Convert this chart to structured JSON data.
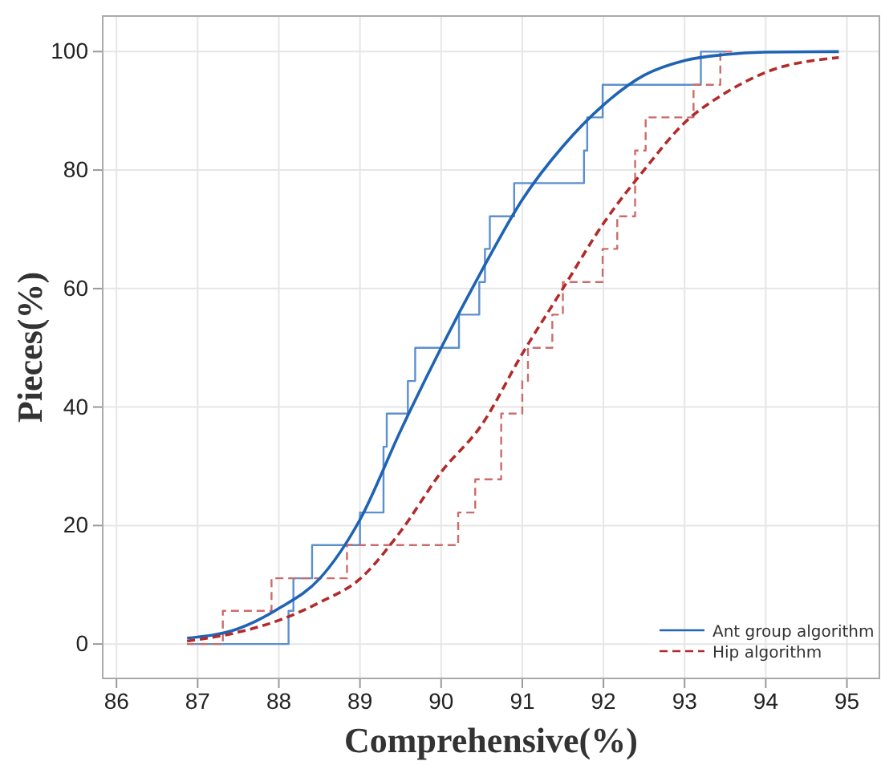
{
  "chart_data": {
    "type": "line",
    "xlabel": "Comprehensive(%)",
    "ylabel": "Pieces(%)",
    "xlim": [
      85.83,
      95.4
    ],
    "ylim": [
      -5.8,
      106
    ],
    "xticks": [
      86,
      87,
      88,
      89,
      90,
      91,
      92,
      93,
      94,
      95
    ],
    "yticks": [
      0,
      20,
      40,
      60,
      80,
      100
    ],
    "grid": true,
    "legend": "bottom right",
    "marker": "none",
    "series": [
      {
        "type": "step",
        "color": "#5b8fd0",
        "line_style": "solid",
        "x": [
          86.87,
          88.12,
          88.18,
          88.41,
          89.0,
          89.29,
          89.33,
          89.59,
          89.68,
          90.22,
          90.47,
          90.54,
          90.6,
          90.9,
          91.76,
          91.8,
          91.99,
          93.2,
          93.5
        ],
        "values": [
          0,
          5.6,
          11.1,
          16.7,
          22.2,
          33.3,
          38.9,
          44.4,
          50,
          55.6,
          61.1,
          66.7,
          72.2,
          77.8,
          83.3,
          88.9,
          94.4,
          100,
          100
        ]
      },
      {
        "type": "step",
        "color": "#cc6b6b",
        "line_style": "dashed",
        "x": [
          86.87,
          87.31,
          87.91,
          88.84,
          90.21,
          90.42,
          90.74,
          91.0,
          91.07,
          91.37,
          91.5,
          91.99,
          92.17,
          92.39,
          92.52,
          93.11,
          93.44,
          93.6
        ],
        "values": [
          0,
          5.6,
          11.1,
          16.7,
          22.2,
          27.8,
          38.9,
          44.4,
          50,
          55.6,
          61.1,
          66.7,
          72.2,
          83.3,
          88.9,
          94.4,
          100,
          100
        ]
      },
      {
        "name": "Ant group algorithm",
        "color": "#1f63b5",
        "line_style": "solid",
        "x": [
          86.87,
          87.5,
          88,
          88.5,
          89,
          89.5,
          90,
          90.5,
          91,
          91.5,
          92,
          92.5,
          93,
          93.5,
          94,
          94.9
        ],
        "values": [
          1,
          2.6,
          6,
          11,
          21,
          36,
          50,
          63,
          75,
          84,
          91,
          96,
          98.5,
          99.5,
          99.9,
          100
        ]
      },
      {
        "name": "Hip algorithm",
        "color": "#b22a2a",
        "line_style": "dashed",
        "x": [
          86.87,
          87.5,
          88,
          88.5,
          89,
          89.5,
          90,
          90.5,
          91,
          91.5,
          92,
          92.5,
          93,
          93.5,
          94,
          94.9
        ],
        "values": [
          0.5,
          2,
          4,
          7,
          11,
          19,
          29,
          37,
          49,
          60,
          71,
          80,
          88,
          93,
          96.5,
          99
        ]
      }
    ]
  }
}
